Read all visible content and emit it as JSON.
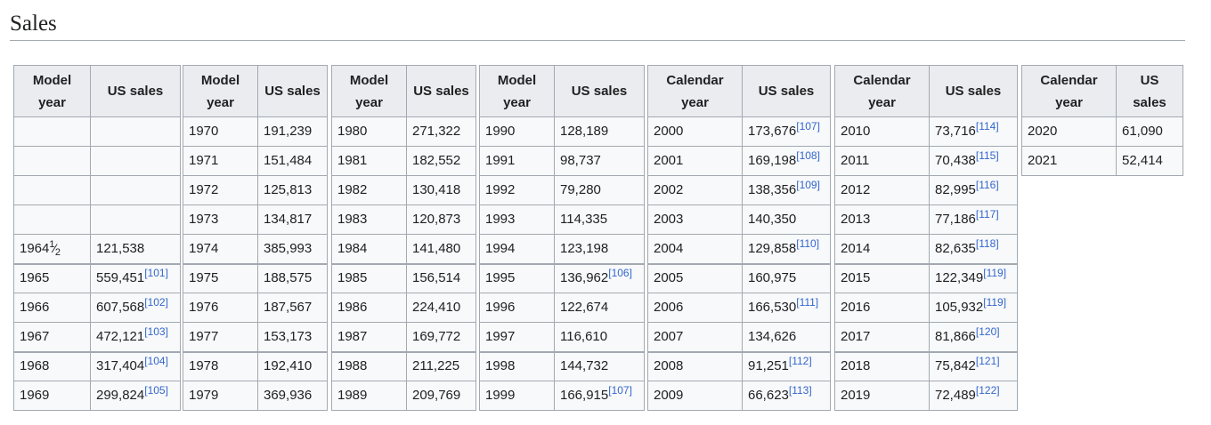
{
  "section_title": "Sales",
  "tables": [
    {
      "col1": "Model year",
      "col2": "US sales",
      "rows": [
        {
          "year": "",
          "sales": "",
          "ref": ""
        },
        {
          "year": "",
          "sales": "",
          "ref": ""
        },
        {
          "year": "",
          "sales": "",
          "ref": ""
        },
        {
          "year": "",
          "sales": "",
          "ref": ""
        },
        {
          "year": "1964",
          "fraction": {
            "num": "1",
            "slash": "⁄",
            "den": "2"
          },
          "sales": "121,538",
          "ref": ""
        },
        {
          "year": "1965",
          "sales": "559,451",
          "ref": "[101]"
        },
        {
          "year": "1966",
          "sales": "607,568",
          "ref": "[102]"
        },
        {
          "year": "1967",
          "sales": "472,121",
          "ref": "[103]"
        },
        {
          "year": "1968",
          "sales": "317,404",
          "ref": "[104]"
        },
        {
          "year": "1969",
          "sales": "299,824",
          "ref": "[105]"
        }
      ]
    },
    {
      "col1": "Model year",
      "col2": "US sales",
      "rows": [
        {
          "year": "1970",
          "sales": "191,239",
          "ref": ""
        },
        {
          "year": "1971",
          "sales": "151,484",
          "ref": ""
        },
        {
          "year": "1972",
          "sales": "125,813",
          "ref": ""
        },
        {
          "year": "1973",
          "sales": "134,817",
          "ref": ""
        },
        {
          "year": "1974",
          "sales": "385,993",
          "ref": ""
        },
        {
          "year": "1975",
          "sales": "188,575",
          "ref": ""
        },
        {
          "year": "1976",
          "sales": "187,567",
          "ref": ""
        },
        {
          "year": "1977",
          "sales": "153,173",
          "ref": ""
        },
        {
          "year": "1978",
          "sales": "192,410",
          "ref": ""
        },
        {
          "year": "1979",
          "sales": "369,936",
          "ref": ""
        }
      ]
    },
    {
      "col1": "Model year",
      "col2": "US sales",
      "rows": [
        {
          "year": "1980",
          "sales": "271,322",
          "ref": ""
        },
        {
          "year": "1981",
          "sales": "182,552",
          "ref": ""
        },
        {
          "year": "1982",
          "sales": "130,418",
          "ref": ""
        },
        {
          "year": "1983",
          "sales": "120,873",
          "ref": ""
        },
        {
          "year": "1984",
          "sales": "141,480",
          "ref": ""
        },
        {
          "year": "1985",
          "sales": "156,514",
          "ref": ""
        },
        {
          "year": "1986",
          "sales": "224,410",
          "ref": ""
        },
        {
          "year": "1987",
          "sales": "169,772",
          "ref": ""
        },
        {
          "year": "1988",
          "sales": "211,225",
          "ref": ""
        },
        {
          "year": "1989",
          "sales": "209,769",
          "ref": ""
        }
      ]
    },
    {
      "col1": "Model year",
      "col2": "US sales",
      "rows": [
        {
          "year": "1990",
          "sales": "128,189",
          "ref": ""
        },
        {
          "year": "1991",
          "sales": "98,737",
          "ref": ""
        },
        {
          "year": "1992",
          "sales": "79,280",
          "ref": ""
        },
        {
          "year": "1993",
          "sales": "114,335",
          "ref": ""
        },
        {
          "year": "1994",
          "sales": "123,198",
          "ref": ""
        },
        {
          "year": "1995",
          "sales": "136,962",
          "ref": "[106]"
        },
        {
          "year": "1996",
          "sales": "122,674",
          "ref": ""
        },
        {
          "year": "1997",
          "sales": "116,610",
          "ref": ""
        },
        {
          "year": "1998",
          "sales": "144,732",
          "ref": ""
        },
        {
          "year": "1999",
          "sales": "166,915",
          "ref": "[107]"
        }
      ]
    },
    {
      "col1": "Calendar year",
      "col2": "US sales",
      "rows": [
        {
          "year": "2000",
          "sales": "173,676",
          "ref": "[107]"
        },
        {
          "year": "2001",
          "sales": "169,198",
          "ref": "[108]"
        },
        {
          "year": "2002",
          "sales": "138,356",
          "ref": "[109]"
        },
        {
          "year": "2003",
          "sales": "140,350",
          "ref": ""
        },
        {
          "year": "2004",
          "sales": "129,858",
          "ref": "[110]"
        },
        {
          "year": "2005",
          "sales": "160,975",
          "ref": ""
        },
        {
          "year": "2006",
          "sales": "166,530",
          "ref": "[111]"
        },
        {
          "year": "2007",
          "sales": "134,626",
          "ref": ""
        },
        {
          "year": "2008",
          "sales": "91,251",
          "ref": "[112]"
        },
        {
          "year": "2009",
          "sales": "66,623",
          "ref": "[113]"
        }
      ]
    },
    {
      "col1": "Calendar year",
      "col2": "US sales",
      "rows": [
        {
          "year": "2010",
          "sales": "73,716",
          "ref": "[114]"
        },
        {
          "year": "2011",
          "sales": "70,438",
          "ref": "[115]"
        },
        {
          "year": "2012",
          "sales": "82,995",
          "ref": "[116]"
        },
        {
          "year": "2013",
          "sales": "77,186",
          "ref": "[117]"
        },
        {
          "year": "2014",
          "sales": "82,635",
          "ref": "[118]"
        },
        {
          "year": "2015",
          "sales": "122,349",
          "ref": "[119]"
        },
        {
          "year": "2016",
          "sales": "105,932",
          "ref": "[119]"
        },
        {
          "year": "2017",
          "sales": "81,866",
          "ref": "[120]"
        },
        {
          "year": "2018",
          "sales": "75,842",
          "ref": "[121]"
        },
        {
          "year": "2019",
          "sales": "72,489",
          "ref": "[122]"
        }
      ]
    },
    {
      "col1": "Calendar year",
      "col2": "US sales",
      "rows": [
        {
          "year": "2020",
          "sales": "61,090",
          "ref": ""
        },
        {
          "year": "2021",
          "sales": "52,414",
          "ref": ""
        }
      ]
    }
  ]
}
